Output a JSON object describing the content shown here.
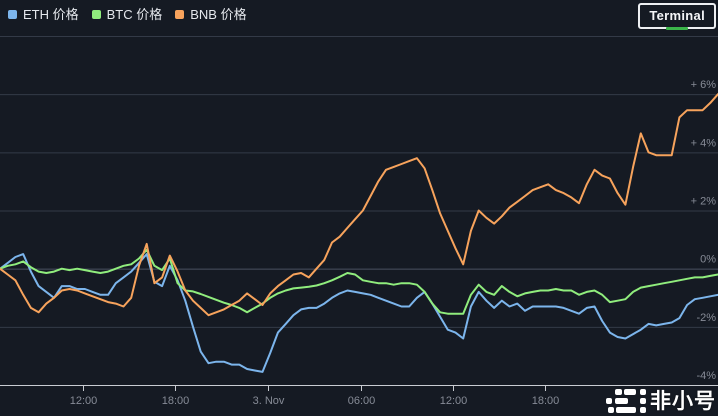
{
  "legend": {
    "items": [
      {
        "id": "eth",
        "label": "ETH 价格",
        "color": "#7cb5ec"
      },
      {
        "id": "btc",
        "label": "BTC 价格",
        "color": "#90ed7d"
      },
      {
        "id": "bnb",
        "label": "BNB 价格",
        "color": "#f7a35c"
      }
    ]
  },
  "badge": {
    "label": "Terminal",
    "accent_color": "#3bb54a"
  },
  "watermark": {
    "text": "非小号"
  },
  "colors": {
    "background": "#151a23",
    "grid": "#333a47",
    "grid_zero": "#4a5160",
    "axis_line": "#c9ccd2",
    "axis_text": "#878c97"
  },
  "chart_data": {
    "type": "line",
    "title": "",
    "xlabel": "",
    "ylabel": "",
    "x_unit": "30min-intervals, Nov 2 ~07:00 through Nov 4 ~01:30",
    "grid": true,
    "legend_position": "top-left",
    "x_axis": {
      "ticks": [
        {
          "label": "12:00",
          "pos": 0.1156
        },
        {
          "label": "18:00",
          "pos": 0.2444
        },
        {
          "label": "3. Nov",
          "pos": 0.3733
        },
        {
          "label": "06:00",
          "pos": 0.5021
        },
        {
          "label": "12:00",
          "pos": 0.6309
        },
        {
          "label": "18:00",
          "pos": 0.7597
        }
      ]
    },
    "y_axis": {
      "min": -4,
      "max": 8,
      "unit": "%",
      "ticks": [
        {
          "label": "+ 6%",
          "value": 6
        },
        {
          "label": "+ 4%",
          "value": 4
        },
        {
          "label": "+ 2%",
          "value": 2
        },
        {
          "label": "0%",
          "value": 0
        },
        {
          "label": "-2%",
          "value": -2
        },
        {
          "label": "-4%",
          "value": -4
        }
      ]
    },
    "series": [
      {
        "id": "eth",
        "name": "ETH 价格",
        "color": "#7cb5ec",
        "values": [
          0.0,
          0.2,
          0.4,
          0.5,
          -0.1,
          -0.6,
          -0.8,
          -1.0,
          -0.6,
          -0.6,
          -0.7,
          -0.7,
          -0.8,
          -0.9,
          -0.9,
          -0.5,
          -0.3,
          -0.1,
          0.2,
          0.5,
          -0.45,
          -0.6,
          0.1,
          -0.4,
          -1.1,
          -2.0,
          -2.85,
          -3.25,
          -3.2,
          -3.2,
          -3.3,
          -3.3,
          -3.45,
          -3.5,
          -3.55,
          -2.9,
          -2.2,
          -1.9,
          -1.6,
          -1.4,
          -1.35,
          -1.35,
          -1.2,
          -1.0,
          -0.85,
          -0.75,
          -0.8,
          -0.85,
          -0.9,
          -1.0,
          -1.1,
          -1.2,
          -1.3,
          -1.3,
          -1.0,
          -0.8,
          -1.2,
          -1.65,
          -2.1,
          -2.2,
          -2.4,
          -1.3,
          -0.8,
          -1.1,
          -1.35,
          -1.1,
          -1.3,
          -1.2,
          -1.45,
          -1.3,
          -1.3,
          -1.3,
          -1.3,
          -1.35,
          -1.45,
          -1.55,
          -1.35,
          -1.3,
          -1.8,
          -2.2,
          -2.35,
          -2.4,
          -2.25,
          -2.1,
          -1.9,
          -1.95,
          -1.9,
          -1.85,
          -1.7,
          -1.25,
          -1.05,
          -1.0,
          -0.95,
          -0.9
        ]
      },
      {
        "id": "btc",
        "name": "BTC 价格",
        "color": "#90ed7d",
        "values": [
          0.0,
          0.1,
          0.15,
          0.25,
          0.05,
          -0.1,
          -0.15,
          -0.1,
          0.0,
          -0.05,
          0.0,
          -0.05,
          -0.1,
          -0.15,
          -0.1,
          0.0,
          0.1,
          0.15,
          0.35,
          0.65,
          0.1,
          -0.05,
          0.35,
          -0.5,
          -0.75,
          -0.78,
          -0.87,
          -0.97,
          -1.07,
          -1.17,
          -1.25,
          -1.35,
          -1.5,
          -1.35,
          -1.2,
          -1.0,
          -0.85,
          -0.75,
          -0.68,
          -0.65,
          -0.62,
          -0.58,
          -0.5,
          -0.4,
          -0.28,
          -0.15,
          -0.2,
          -0.4,
          -0.45,
          -0.5,
          -0.5,
          -0.55,
          -0.5,
          -0.5,
          -0.55,
          -0.8,
          -1.2,
          -1.5,
          -1.55,
          -1.55,
          -1.55,
          -0.9,
          -0.55,
          -0.8,
          -0.9,
          -0.6,
          -0.8,
          -0.95,
          -0.85,
          -0.8,
          -0.75,
          -0.75,
          -0.7,
          -0.75,
          -0.75,
          -0.9,
          -0.8,
          -0.75,
          -0.9,
          -1.15,
          -1.1,
          -1.05,
          -0.8,
          -0.65,
          -0.6,
          -0.55,
          -0.5,
          -0.45,
          -0.4,
          -0.35,
          -0.3,
          -0.3,
          -0.25,
          -0.2
        ]
      },
      {
        "id": "bnb",
        "name": "BNB 价格",
        "color": "#f7a35c",
        "values": [
          0.0,
          -0.2,
          -0.4,
          -0.9,
          -1.35,
          -1.5,
          -1.2,
          -1.0,
          -0.75,
          -0.7,
          -0.75,
          -0.85,
          -0.95,
          -1.05,
          -1.15,
          -1.2,
          -1.3,
          -1.0,
          0.1,
          0.85,
          -0.5,
          -0.3,
          0.45,
          -0.1,
          -0.75,
          -1.1,
          -1.35,
          -1.6,
          -1.5,
          -1.4,
          -1.25,
          -1.1,
          -0.85,
          -1.05,
          -1.25,
          -0.85,
          -0.6,
          -0.4,
          -0.2,
          -0.15,
          -0.3,
          0.0,
          0.3,
          0.9,
          1.1,
          1.4,
          1.7,
          2.0,
          2.5,
          3.0,
          3.4,
          3.5,
          3.6,
          3.7,
          3.8,
          3.45,
          2.7,
          1.9,
          1.3,
          0.7,
          0.15,
          1.3,
          2.0,
          1.75,
          1.55,
          1.8,
          2.1,
          2.3,
          2.5,
          2.7,
          2.8,
          2.9,
          2.7,
          2.6,
          2.45,
          2.25,
          2.9,
          3.4,
          3.2,
          3.1,
          2.6,
          2.2,
          3.5,
          4.65,
          4.0,
          3.9,
          3.9,
          3.9,
          5.2,
          5.45,
          5.45,
          5.45,
          5.7,
          6.0
        ]
      }
    ]
  }
}
